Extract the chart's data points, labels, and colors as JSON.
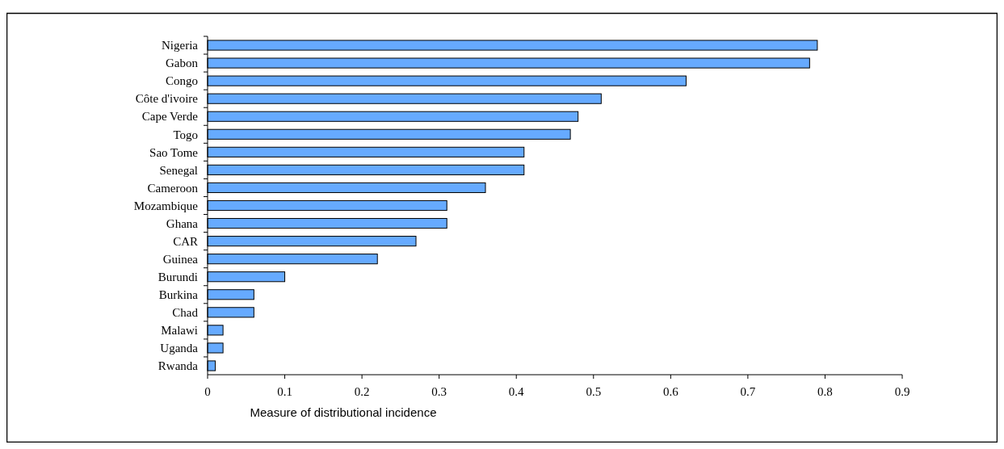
{
  "chart_data": {
    "type": "bar",
    "orientation": "horizontal",
    "xlabel": "Measure of distributional incidence",
    "categories": [
      "Nigeria",
      "Gabon",
      "Congo",
      "Côte d'ivoire",
      "Cape Verde",
      "Togo",
      "Sao Tome",
      "Senegal",
      "Cameroon",
      "Mozambique",
      "Ghana",
      "CAR",
      "Guinea",
      "Burundi",
      "Burkina",
      "Chad",
      "Malawi",
      "Uganda",
      "Rwanda"
    ],
    "values": [
      0.79,
      0.78,
      0.62,
      0.51,
      0.48,
      0.47,
      0.41,
      0.41,
      0.36,
      0.31,
      0.31,
      0.27,
      0.22,
      0.1,
      0.06,
      0.06,
      0.02,
      0.02,
      0.01
    ],
    "color": "#66aaff",
    "xlim": [
      0,
      0.9
    ],
    "xticks": [
      0,
      0.1,
      0.2,
      0.3,
      0.4,
      0.5,
      0.6,
      0.7,
      0.8,
      0.9
    ],
    "grid": false
  }
}
